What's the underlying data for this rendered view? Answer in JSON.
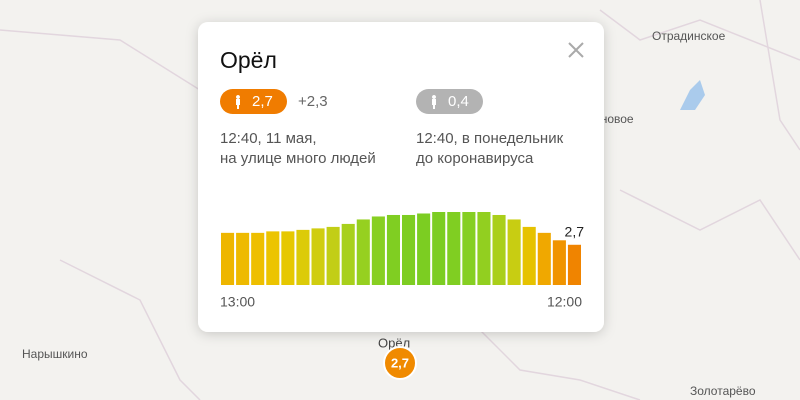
{
  "map": {
    "labels": [
      "Отрадинское",
      "Становое",
      "Нарышкино",
      "Орёл",
      "Золотарёво"
    ],
    "marker": "2,7"
  },
  "popup": {
    "title": "Орёл",
    "now_badge": "2,7",
    "delta": "+2,3",
    "before_badge": "0,4",
    "now_text": [
      "12:40, 11 мая,",
      "на улице много людей"
    ],
    "before_text": [
      "12:40, в понедельник",
      "до коронавируса"
    ]
  },
  "chart_data": {
    "type": "bar",
    "categories": [
      "13:00",
      null,
      null,
      null,
      null,
      null,
      null,
      null,
      null,
      null,
      null,
      null,
      null,
      null,
      null,
      null,
      null,
      null,
      null,
      null,
      null,
      null,
      null,
      "12:00"
    ],
    "values": [
      3.5,
      3.5,
      3.5,
      3.6,
      3.6,
      3.7,
      3.8,
      3.9,
      4.1,
      4.4,
      4.6,
      4.7,
      4.7,
      4.8,
      4.9,
      4.9,
      4.9,
      4.9,
      4.7,
      4.4,
      3.9,
      3.5,
      3.0,
      2.7
    ],
    "value_labels": [
      null,
      null,
      null,
      null,
      null,
      null,
      null,
      null,
      null,
      null,
      null,
      null,
      null,
      null,
      null,
      null,
      null,
      null,
      null,
      null,
      null,
      null,
      null,
      "2,7"
    ],
    "colors": [
      "#eeb600",
      "#eeba00",
      "#eebf00",
      "#ecc400",
      "#e6c800",
      "#dccb08",
      "#d0cd10",
      "#c2ce16",
      "#a8d01c",
      "#96d020",
      "#88cf22",
      "#80ce22",
      "#7ecd22",
      "#7ccd22",
      "#7ccd22",
      "#80ce22",
      "#86cf22",
      "#92cf20",
      "#aacf1a",
      "#c8cd12",
      "#e6c200",
      "#f0a800",
      "#f09400",
      "#f08400"
    ]
  }
}
